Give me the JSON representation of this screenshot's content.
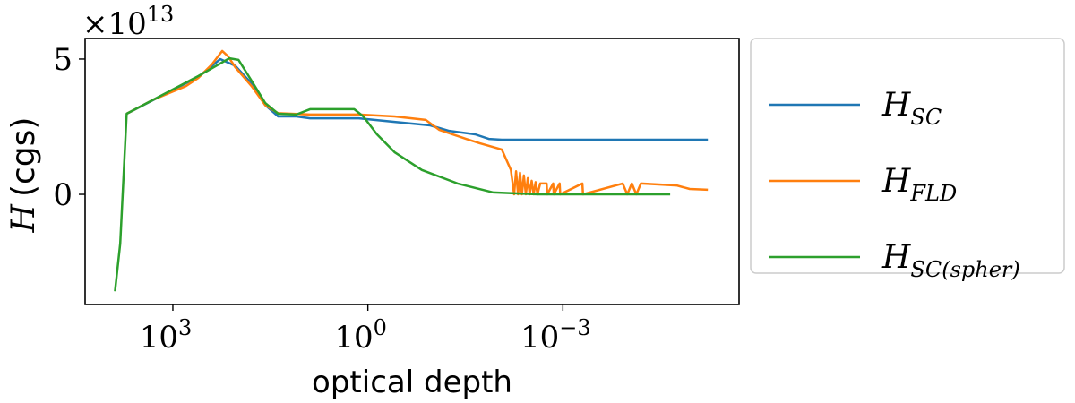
{
  "chart_data": {
    "type": "line",
    "title": "",
    "xlabel": "optical depth",
    "ylabel_main": "H",
    "ylabel_unit": "(cgs)",
    "x_scale": "log",
    "x_reversed": true,
    "x_values_are": "log10(optical depth)",
    "xlim_log10": [
      4.35,
      -5.71
    ],
    "ylim": [
      -4.07,
      5.76
    ],
    "y_multiplier": {
      "base": "×10",
      "exp": "13"
    },
    "xticks": [
      {
        "value": 3,
        "base": "10",
        "exp": "3"
      },
      {
        "value": 0,
        "base": "10",
        "exp": "0"
      },
      {
        "value": -3,
        "base": "10",
        "exp": "−3"
      }
    ],
    "yticks": [
      {
        "value": 0,
        "label": "0"
      },
      {
        "value": 5,
        "label": "5"
      }
    ],
    "grid": false,
    "legend_position": "outside-right",
    "series": [
      {
        "name": "H_SC",
        "label_main": "H",
        "label_sub": "SC",
        "color": "#1f77b4",
        "x": [
          3.71,
          2.61,
          2.27,
          2.04,
          1.79,
          1.58,
          1.38,
          1.1,
          0.89,
          0.14,
          -0.41,
          -0.96,
          -1.24,
          -1.65,
          -1.86,
          -2.06,
          -5.23
        ],
        "y": [
          2.98,
          4.34,
          5.0,
          4.75,
          4.1,
          3.3,
          2.88,
          2.88,
          2.81,
          2.81,
          2.68,
          2.55,
          2.35,
          2.22,
          2.05,
          2.02,
          2.02
        ]
      },
      {
        "name": "H_FLD",
        "label_main": "H",
        "label_sub": "FLD",
        "color": "#ff7f0e",
        "x": [
          3.71,
          3.3,
          3.0,
          2.8,
          2.61,
          2.4,
          2.24,
          2.15,
          2.04,
          1.79,
          1.58,
          1.38,
          0.89,
          0.14,
          -0.41,
          -0.89,
          -1.1,
          -1.51,
          -1.72,
          -2.06,
          -2.2,
          -2.25,
          -2.28,
          -2.31,
          -2.34,
          -2.37,
          -2.4,
          -2.43,
          -2.46,
          -2.49,
          -2.52,
          -2.55,
          -2.58,
          -2.61,
          -2.65,
          -2.75,
          -2.76,
          -2.85,
          -2.86,
          -2.95,
          -2.96,
          -3.3,
          -3.31,
          -3.92,
          -3.99,
          -4.06,
          -4.13,
          -4.2,
          -4.75,
          -4.95,
          -5.23
        ],
        "y": [
          2.98,
          3.5,
          3.8,
          4.0,
          4.3,
          4.8,
          5.3,
          5.1,
          4.7,
          4.0,
          3.3,
          3.0,
          2.95,
          2.95,
          2.88,
          2.75,
          2.38,
          2.05,
          1.89,
          1.66,
          0.9,
          0.0,
          0.85,
          0.0,
          0.8,
          0.0,
          0.7,
          0.0,
          0.6,
          0.0,
          0.5,
          0.0,
          0.45,
          0.0,
          0.4,
          0.4,
          0.0,
          0.4,
          0.0,
          0.4,
          0.0,
          0.4,
          0.0,
          0.4,
          0.0,
          0.4,
          0.0,
          0.4,
          0.33,
          0.2,
          0.17
        ]
      },
      {
        "name": "H_SC(spher)",
        "label_main": "H",
        "label_sub": "SC(spher)",
        "color": "#2ca02c",
        "x": [
          3.89,
          3.81,
          3.71,
          2.61,
          2.13,
          1.99,
          1.79,
          1.58,
          1.38,
          1.1,
          0.89,
          0.69,
          0.21,
          0.07,
          -0.14,
          -0.41,
          -0.83,
          -1.38,
          -1.93,
          -2.61,
          -4.65
        ],
        "y": [
          -3.58,
          -1.82,
          2.98,
          4.37,
          5.03,
          4.97,
          4.2,
          3.38,
          2.98,
          2.95,
          3.15,
          3.15,
          3.15,
          2.88,
          2.22,
          1.56,
          0.9,
          0.4,
          0.07,
          0.0,
          0.0
        ]
      }
    ]
  }
}
